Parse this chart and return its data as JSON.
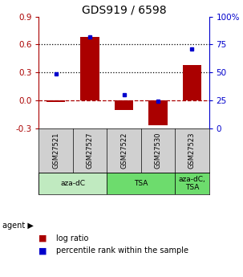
{
  "title": "GDS919 / 6598",
  "samples": [
    "GSM27521",
    "GSM27527",
    "GSM27522",
    "GSM27530",
    "GSM27523"
  ],
  "log_ratios": [
    -0.02,
    0.68,
    -0.1,
    -0.27,
    0.38
  ],
  "percentile_ranks": [
    49,
    82,
    30,
    24,
    71
  ],
  "ylim_left": [
    -0.3,
    0.9
  ],
  "ylim_right": [
    0,
    100
  ],
  "yticks_left": [
    -0.3,
    0.0,
    0.3,
    0.6,
    0.9
  ],
  "yticks_right": [
    0,
    25,
    50,
    75,
    100
  ],
  "hlines_dotted": [
    0.3,
    0.6
  ],
  "hline_dashed": 0.0,
  "agent_labels": [
    "aza-dC",
    "TSA",
    "aza-dC,\nTSA"
  ],
  "agent_groups": [
    [
      0,
      1
    ],
    [
      2,
      3
    ],
    [
      4
    ]
  ],
  "agent_colors": [
    "#c0eac0",
    "#6ddc6d",
    "#6ddc6d"
  ],
  "bar_color": "#aa0000",
  "dot_color": "#0000cc",
  "sample_bg_color": "#d0d0d0",
  "title_fontsize": 10,
  "tick_fontsize": 7.5,
  "legend_fontsize": 7
}
